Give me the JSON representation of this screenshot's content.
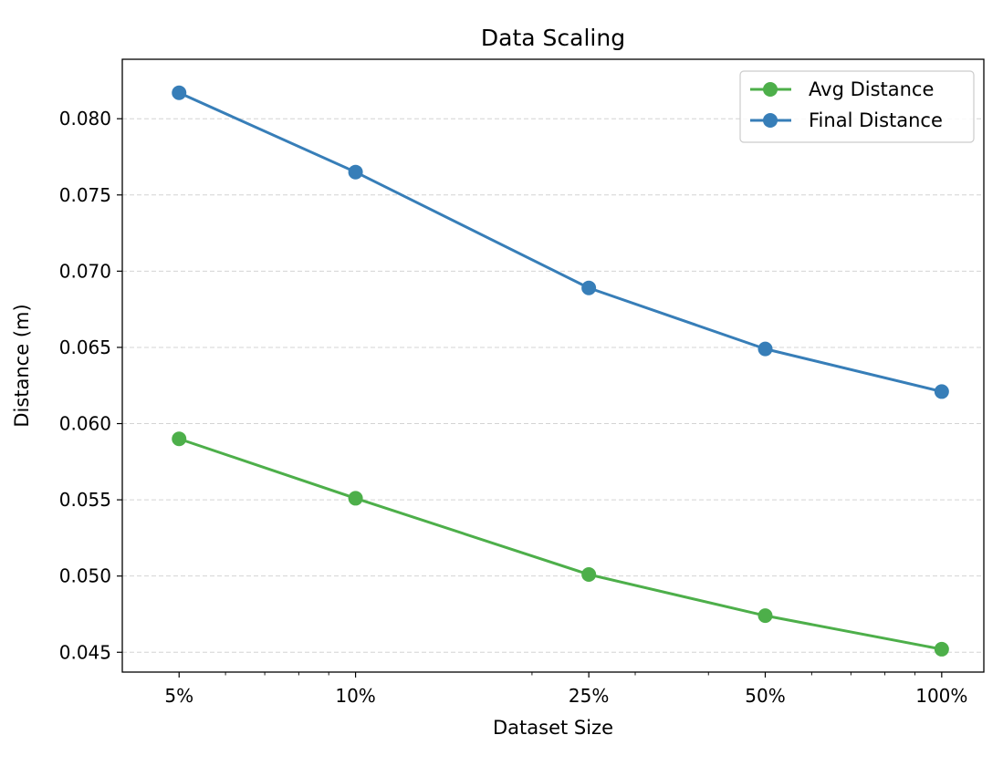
{
  "chart_data": {
    "type": "line",
    "title": "Data Scaling",
    "xlabel": "Dataset Size",
    "ylabel": "Distance (m)",
    "x_scale": "log",
    "x": [
      5,
      10,
      25,
      50,
      100
    ],
    "x_tick_labels": [
      "5%",
      "10%",
      "25%",
      "50%",
      "100%"
    ],
    "y_ticks": [
      "0.045",
      "0.050",
      "0.055",
      "0.060",
      "0.065",
      "0.070",
      "0.075",
      "0.080"
    ],
    "ylim": [
      0.0437,
      0.0839
    ],
    "grid": "horizontal-dashed",
    "legend_position": "top-right",
    "series": [
      {
        "name": "Avg Distance",
        "color": "#4daf4a",
        "values": [
          0.059,
          0.0551,
          0.0501,
          0.0474,
          0.0452
        ]
      },
      {
        "name": "Final Distance",
        "color": "#377eb8",
        "values": [
          0.0817,
          0.0765,
          0.0689,
          0.0649,
          0.0621
        ]
      }
    ]
  }
}
